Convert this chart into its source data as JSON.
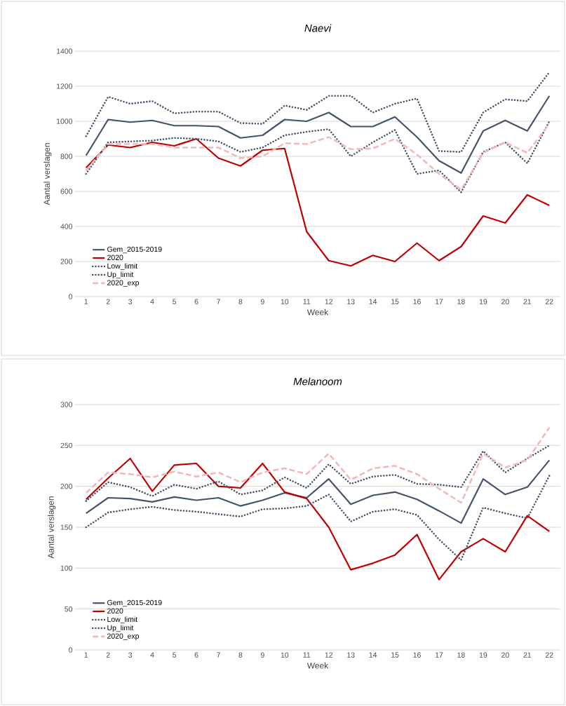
{
  "chart_data": [
    {
      "type": "line",
      "title": "Naevi",
      "xlabel": "Week",
      "ylabel": "Aantal verslagen",
      "categories": [
        "1",
        "2",
        "3",
        "4",
        "5",
        "6",
        "7",
        "8",
        "9",
        "10",
        "11",
        "12",
        "13",
        "14",
        "15",
        "16",
        "17",
        "18",
        "19",
        "20",
        "21",
        "22"
      ],
      "ylim": [
        0,
        1400
      ],
      "yticks": [
        0,
        200,
        400,
        600,
        800,
        1000,
        1200,
        1400
      ],
      "grid": "y",
      "legend": "bottom left",
      "series": [
        {
          "name": "Gem_2015-2019",
          "color": "#44546a",
          "line_style": "solid",
          "values": [
            805,
            1010,
            995,
            1005,
            975,
            975,
            970,
            905,
            920,
            1010,
            1000,
            1050,
            970,
            970,
            1025,
            910,
            775,
            705,
            945,
            1005,
            945,
            1145
          ]
        },
        {
          "name": "2020",
          "color": "#c00000",
          "line_style": "solid",
          "values": [
            735,
            865,
            850,
            880,
            860,
            900,
            790,
            745,
            835,
            845,
            370,
            205,
            175,
            235,
            200,
            305,
            205,
            285,
            460,
            420,
            580,
            520
          ]
        },
        {
          "name": "Low_limit",
          "color": "#44546a",
          "line_style": "dotted",
          "values": [
            700,
            880,
            885,
            890,
            905,
            900,
            885,
            825,
            850,
            920,
            940,
            955,
            800,
            880,
            950,
            700,
            720,
            595,
            825,
            880,
            760,
            1000
          ]
        },
        {
          "name": "Up_limit",
          "color": "#44546a",
          "line_style": "dotted",
          "values": [
            915,
            1140,
            1100,
            1115,
            1045,
            1055,
            1055,
            990,
            985,
            1090,
            1065,
            1145,
            1145,
            1050,
            1100,
            1130,
            830,
            825,
            1050,
            1125,
            1115,
            1280
          ]
        },
        {
          "name": "2020_exp",
          "color": "#f4b8b8",
          "line_style": "dashed",
          "values": [
            720,
            870,
            870,
            870,
            850,
            850,
            850,
            790,
            800,
            875,
            870,
            910,
            840,
            845,
            900,
            810,
            700,
            610,
            820,
            880,
            820,
            985
          ]
        }
      ]
    },
    {
      "type": "line",
      "title": "Melanoom",
      "xlabel": "Week",
      "ylabel": "Aantal verslagen",
      "categories": [
        "1",
        "2",
        "3",
        "4",
        "5",
        "6",
        "7",
        "8",
        "9",
        "10",
        "11",
        "12",
        "13",
        "14",
        "15",
        "16",
        "17",
        "18",
        "19",
        "20",
        "21",
        "22"
      ],
      "ylim": [
        0,
        300
      ],
      "yticks": [
        0,
        50,
        100,
        150,
        200,
        250,
        300
      ],
      "grid": "y",
      "legend": "bottom left",
      "series": [
        {
          "name": "Gem_2015-2019",
          "color": "#44546a",
          "line_style": "solid",
          "values": [
            167,
            186,
            185,
            181,
            187,
            183,
            186,
            176,
            183,
            192,
            186,
            209,
            178,
            189,
            193,
            184,
            170,
            155,
            209,
            190,
            199,
            232
          ]
        },
        {
          "name": "2020",
          "color": "#c00000",
          "line_style": "solid",
          "values": [
            184,
            210,
            234,
            194,
            226,
            228,
            200,
            198,
            228,
            193,
            185,
            150,
            98,
            106,
            116,
            141,
            86,
            120,
            136,
            120,
            164,
            145
          ]
        },
        {
          "name": "Low_limit",
          "color": "#44546a",
          "line_style": "dotted",
          "values": [
            150,
            168,
            172,
            175,
            171,
            169,
            166,
            163,
            172,
            173,
            176,
            190,
            157,
            169,
            172,
            165,
            135,
            110,
            174,
            167,
            161,
            213
          ]
        },
        {
          "name": "Up_limit",
          "color": "#44546a",
          "line_style": "dotted",
          "values": [
            182,
            205,
            199,
            188,
            202,
            197,
            206,
            190,
            195,
            211,
            198,
            227,
            203,
            212,
            214,
            203,
            202,
            199,
            243,
            217,
            234,
            250
          ]
        },
        {
          "name": "2020_exp",
          "color": "#f4b8b8",
          "line_style": "dashed",
          "values": [
            192,
            217,
            215,
            211,
            218,
            212,
            217,
            205,
            217,
            222,
            215,
            240,
            208,
            222,
            225,
            215,
            197,
            180,
            240,
            223,
            232,
            272
          ]
        }
      ]
    }
  ]
}
